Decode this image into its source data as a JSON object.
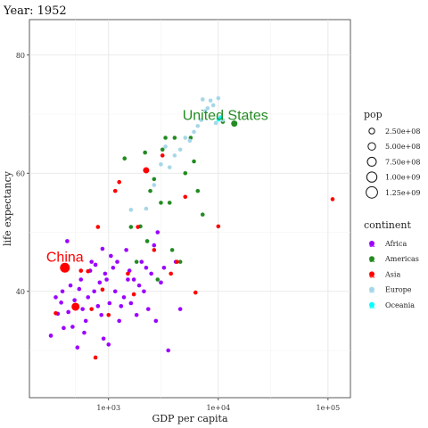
{
  "header": {
    "year_label": "Year: 1952"
  },
  "chart_data": {
    "type": "scatter",
    "title": "",
    "xlabel": "GDP per capita",
    "ylabel": "life expectancy",
    "x_scale": "log10",
    "xlim": [
      190,
      160000
    ],
    "ylim": [
      22,
      86
    ],
    "x_ticks": [
      {
        "value": 1000,
        "label": "1e+03"
      },
      {
        "value": 10000,
        "label": "1e+04"
      },
      {
        "value": 100000,
        "label": "1e+05"
      }
    ],
    "y_ticks": [
      {
        "value": 40,
        "label": "40"
      },
      {
        "value": 60,
        "label": "60"
      },
      {
        "value": 80,
        "label": "80"
      }
    ],
    "grid": true,
    "legend_placement": "right",
    "colors": {
      "Africa": "#9b00ff",
      "Americas": "#228b22",
      "Asia": "#ff0000",
      "Europe": "#a6d7e8",
      "Oceania": "#00ffff"
    },
    "size_legend": {
      "title": "pop",
      "entries": [
        {
          "value": 250000000,
          "label": "2.50e+08"
        },
        {
          "value": 500000000,
          "label": "5.00e+08"
        },
        {
          "value": 750000000,
          "label": "7.50e+08"
        },
        {
          "value": 1000000000,
          "label": "1.00e+09"
        },
        {
          "value": 1250000000,
          "label": "1.25e+09"
        }
      ]
    },
    "color_legend": {
      "title": "continent",
      "entries": [
        "Africa",
        "Americas",
        "Asia",
        "Europe",
        "Oceania"
      ]
    },
    "annotations": [
      {
        "text": "China",
        "x": 400,
        "y": 44.0,
        "continent": "Asia"
      },
      {
        "text": "United States",
        "x": 13990,
        "y": 68.4,
        "continent": "Americas"
      }
    ],
    "series": [
      {
        "name": "Africa",
        "points": [
          [
            298,
            32.5
          ],
          [
            330,
            39.0
          ],
          [
            345,
            36.2
          ],
          [
            370,
            38.1
          ],
          [
            380,
            40.0
          ],
          [
            390,
            33.8
          ],
          [
            420,
            48.5
          ],
          [
            430,
            36.5
          ],
          [
            450,
            41.0
          ],
          [
            470,
            34.0
          ],
          [
            490,
            38.5
          ],
          [
            520,
            30.5
          ],
          [
            540,
            40.4
          ],
          [
            560,
            42.0
          ],
          [
            580,
            37.0
          ],
          [
            600,
            33.0
          ],
          [
            620,
            35.0
          ],
          [
            650,
            39.0
          ],
          [
            680,
            43.5
          ],
          [
            700,
            45.0
          ],
          [
            740,
            40.0
          ],
          [
            760,
            44.5
          ],
          [
            800,
            37.5
          ],
          [
            830,
            41.5
          ],
          [
            860,
            36.0
          ],
          [
            880,
            47.2
          ],
          [
            900,
            32.0
          ],
          [
            930,
            43.0
          ],
          [
            960,
            42.0
          ],
          [
            1000,
            31.0
          ],
          [
            1020,
            38.0
          ],
          [
            1050,
            46.0
          ],
          [
            1100,
            44.0
          ],
          [
            1150,
            40.0
          ],
          [
            1200,
            45.0
          ],
          [
            1250,
            35.0
          ],
          [
            1300,
            37.5
          ],
          [
            1380,
            39.0
          ],
          [
            1450,
            47.0
          ],
          [
            1500,
            42.0
          ],
          [
            1550,
            43.5
          ],
          [
            1600,
            38.0
          ],
          [
            1700,
            42.0
          ],
          [
            1800,
            36.0
          ],
          [
            1900,
            41.0
          ],
          [
            2000,
            45.0
          ],
          [
            2100,
            40.0
          ],
          [
            2200,
            44.0
          ],
          [
            2300,
            37.0
          ],
          [
            2450,
            43.0
          ],
          [
            2600,
            47.8
          ],
          [
            2700,
            35.0
          ],
          [
            2800,
            50.0
          ],
          [
            3000,
            41.5
          ],
          [
            3200,
            44.0
          ],
          [
            3500,
            30.0
          ],
          [
            4100,
            45.0
          ],
          [
            4500,
            37.0
          ]
        ]
      },
      {
        "name": "Americas",
        "points": [
          [
            1400,
            62.5
          ],
          [
            1600,
            50.9
          ],
          [
            1800,
            45.0
          ],
          [
            1950,
            51.0
          ],
          [
            2150,
            63.5
          ],
          [
            2250,
            48.5
          ],
          [
            2400,
            57.0
          ],
          [
            2600,
            59.0
          ],
          [
            2800,
            42.0
          ],
          [
            3000,
            55.0
          ],
          [
            3100,
            64.0
          ],
          [
            3300,
            66.0
          ],
          [
            3600,
            55.0
          ],
          [
            3800,
            47.0
          ],
          [
            4000,
            66.0
          ],
          [
            4500,
            45.0
          ],
          [
            5000,
            60.0
          ],
          [
            5600,
            66.0
          ],
          [
            6000,
            62.0
          ],
          [
            6500,
            57.0
          ],
          [
            7200,
            53.0
          ],
          [
            11000,
            68.7
          ],
          [
            13990,
            68.4
          ]
        ]
      },
      {
        "name": "Asia",
        "points": [
          [
            330,
            36.3
          ],
          [
            400,
            44.0
          ],
          [
            500,
            37.4
          ],
          [
            560,
            43.5
          ],
          [
            650,
            43.4
          ],
          [
            700,
            37.0
          ],
          [
            760,
            28.8
          ],
          [
            800,
            50.9
          ],
          [
            880,
            40.3
          ],
          [
            1000,
            36.0
          ],
          [
            1150,
            57.0
          ],
          [
            1250,
            58.5
          ],
          [
            1500,
            43.0
          ],
          [
            1700,
            39.5
          ],
          [
            1850,
            50.9
          ],
          [
            2200,
            60.5
          ],
          [
            2600,
            47.0
          ],
          [
            3100,
            63.0
          ],
          [
            3700,
            43.0
          ],
          [
            4200,
            45.0
          ],
          [
            5000,
            56.0
          ],
          [
            6200,
            39.8
          ],
          [
            10000,
            51.0
          ],
          [
            110000,
            55.6
          ]
        ]
      },
      {
        "name": "Europe",
        "points": [
          [
            1600,
            53.8
          ],
          [
            2200,
            54.0
          ],
          [
            2600,
            58.0
          ],
          [
            3000,
            61.5
          ],
          [
            3300,
            64.5
          ],
          [
            3600,
            61.0
          ],
          [
            4000,
            63.0
          ],
          [
            4500,
            64.0
          ],
          [
            5000,
            66.0
          ],
          [
            5500,
            65.5
          ],
          [
            6000,
            67.0
          ],
          [
            6500,
            68.0
          ],
          [
            7000,
            69.0
          ],
          [
            7200,
            72.5
          ],
          [
            7600,
            70.5
          ],
          [
            8000,
            71.0
          ],
          [
            8500,
            72.3
          ],
          [
            9000,
            71.5
          ],
          [
            9500,
            68.5
          ],
          [
            10000,
            72.7
          ],
          [
            10500,
            69.5
          ],
          [
            11000,
            69.0
          ]
        ]
      },
      {
        "name": "Oceania",
        "points": [
          [
            10040,
            69.1
          ],
          [
            10560,
            69.4
          ]
        ]
      }
    ]
  }
}
